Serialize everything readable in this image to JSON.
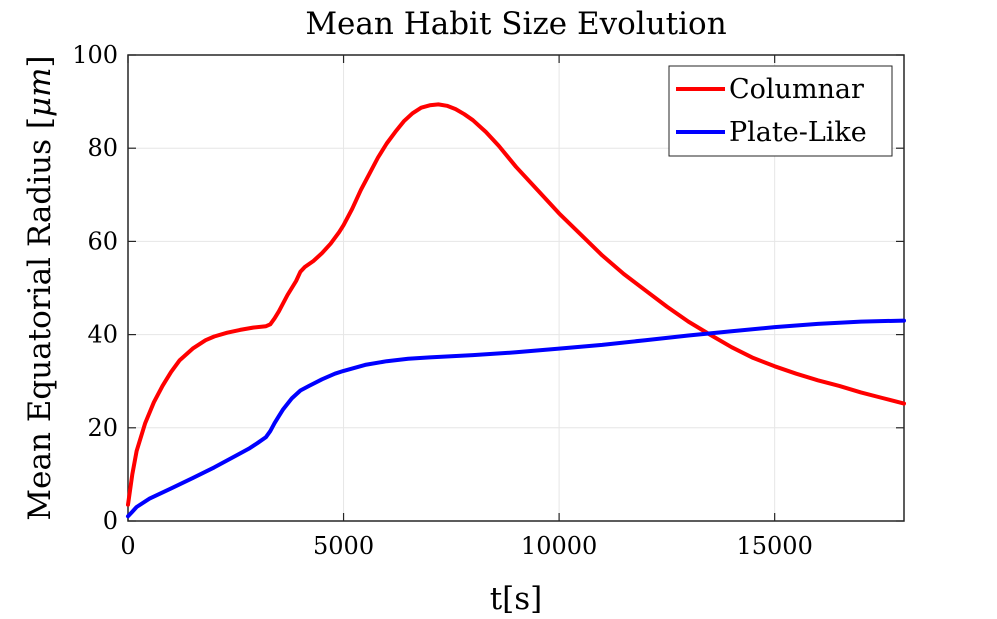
{
  "chart_data": {
    "type": "line",
    "title": "Mean Habit Size Evolution",
    "xlabel": "t[s]",
    "ylabel": "Mean Equatorial Radius [",
    "ylabel_unit": "μm",
    "ylabel_close": "]",
    "xlim": [
      0,
      18000
    ],
    "ylim": [
      0,
      100
    ],
    "xticks": [
      0,
      5000,
      10000,
      15000
    ],
    "yticks": [
      0,
      20,
      40,
      60,
      80,
      100
    ],
    "grid": true,
    "legend_position": "top-right",
    "series": [
      {
        "name": "Columnar",
        "color": "#ff0000",
        "x": [
          0,
          100,
          200,
          400,
          600,
          800,
          1000,
          1200,
          1500,
          1800,
          2000,
          2300,
          2600,
          2900,
          3200,
          3300,
          3400,
          3500,
          3700,
          3900,
          4000,
          4100,
          4300,
          4500,
          4700,
          4900,
          5000,
          5200,
          5400,
          5600,
          5800,
          6000,
          6200,
          6400,
          6600,
          6800,
          7000,
          7200,
          7400,
          7600,
          7800,
          8000,
          8300,
          8600,
          9000,
          9500,
          10000,
          10500,
          11000,
          11500,
          12000,
          12500,
          13000,
          13500,
          14000,
          14500,
          15000,
          15500,
          16000,
          16500,
          17000,
          17500,
          18000
        ],
        "y": [
          3.5,
          10,
          15,
          21,
          25.5,
          29,
          32,
          34.5,
          37,
          38.8,
          39.6,
          40.4,
          41,
          41.5,
          41.8,
          42.2,
          43.5,
          45,
          48.5,
          51.5,
          53.5,
          54.5,
          55.8,
          57.5,
          59.5,
          62,
          63.5,
          67,
          71,
          74.5,
          78,
          81,
          83.5,
          85.8,
          87.5,
          88.7,
          89.2,
          89.4,
          89.1,
          88.4,
          87.3,
          86,
          83.5,
          80.5,
          76,
          71,
          66,
          61.5,
          57,
          53,
          49.5,
          46,
          42.8,
          40,
          37.3,
          35,
          33.2,
          31.6,
          30.2,
          29,
          27.6,
          26.4,
          25.2
        ]
      },
      {
        "name": "Plate-Like",
        "color": "#0000ff",
        "x": [
          0,
          100,
          200,
          500,
          1000,
          1500,
          2000,
          2500,
          2800,
          3000,
          3200,
          3300,
          3400,
          3500,
          3600,
          3800,
          4000,
          4200,
          4500,
          4800,
          5000,
          5500,
          6000,
          6500,
          7000,
          8000,
          9000,
          10000,
          11000,
          12000,
          13000,
          14000,
          15000,
          16000,
          17000,
          18000
        ],
        "y": [
          1,
          2,
          3,
          4.8,
          7,
          9.2,
          11.5,
          14,
          15.5,
          16.7,
          18,
          19.3,
          21,
          22.5,
          24,
          26.3,
          28,
          29,
          30.4,
          31.6,
          32.2,
          33.5,
          34.3,
          34.8,
          35.1,
          35.6,
          36.2,
          37,
          37.8,
          38.8,
          39.8,
          40.7,
          41.6,
          42.3,
          42.8,
          43
        ]
      }
    ]
  }
}
